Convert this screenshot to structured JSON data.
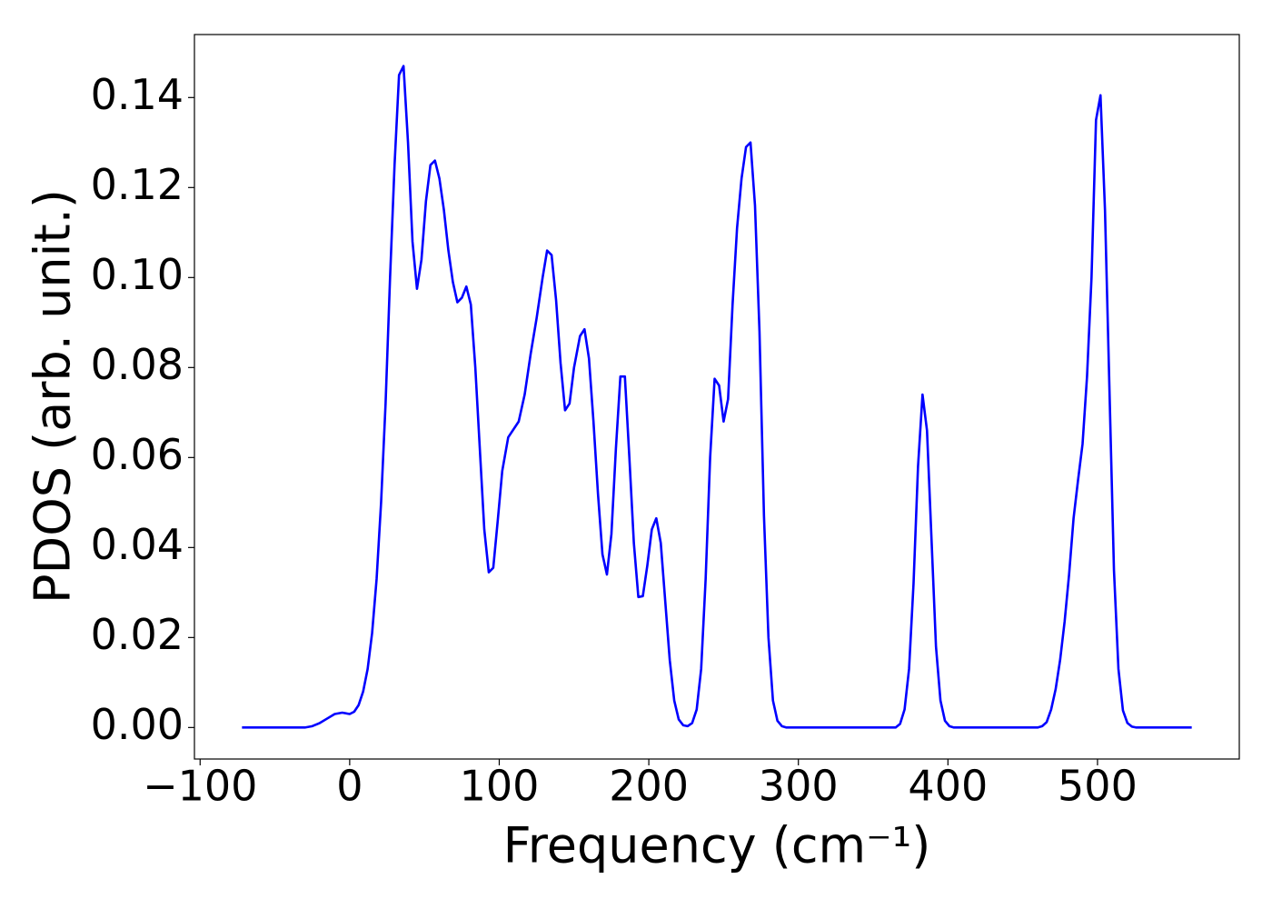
{
  "chart_data": {
    "type": "line",
    "x_label": "Frequency (cm⁻¹)",
    "y_label": "PDOS (arb. unit.)",
    "xlim": [
      -103.8,
      594.8
    ],
    "ylim": [
      -0.007,
      0.154
    ],
    "xticks": [
      {
        "value": -100,
        "label": "−100"
      },
      0,
      100,
      200,
      300,
      400,
      500
    ],
    "yticks": [
      {
        "value": 0,
        "label": "0.00"
      },
      {
        "value": 0.02,
        "label": "0.02"
      },
      {
        "value": 0.04,
        "label": "0.04"
      },
      {
        "value": 0.06,
        "label": "0.06"
      },
      {
        "value": 0.08,
        "label": "0.08"
      },
      {
        "value": 0.1,
        "label": "0.10"
      },
      {
        "value": 0.12,
        "label": "0.12"
      },
      {
        "value": 0.14,
        "label": "0.14"
      }
    ],
    "x": [
      -72,
      -30,
      -25,
      -20,
      -15,
      -10,
      -5,
      0,
      3,
      6,
      9,
      12,
      15,
      18,
      21,
      24,
      27,
      30,
      33,
      36,
      39,
      42,
      45,
      48,
      51,
      54,
      57,
      60,
      63,
      66,
      69,
      72,
      75,
      78,
      81,
      84,
      87,
      90,
      93,
      96,
      99,
      102,
      106,
      113,
      117,
      121,
      125,
      129,
      132,
      135,
      138,
      141,
      144,
      147,
      150,
      154,
      157,
      160,
      163,
      166,
      169,
      172,
      175,
      178,
      181,
      184,
      187,
      190,
      193,
      196,
      199,
      202,
      205,
      208,
      211,
      214,
      217,
      220,
      223,
      226,
      229,
      232,
      235,
      238,
      241,
      244,
      247,
      250,
      253,
      256,
      259,
      262,
      265,
      268,
      271,
      274,
      277,
      280,
      283,
      286,
      289,
      292,
      365,
      368,
      371,
      374,
      377,
      380,
      383,
      386,
      389,
      392,
      395,
      398,
      401,
      404,
      460,
      463,
      466,
      469,
      472,
      475,
      478,
      481,
      484,
      487,
      490,
      493,
      496,
      499,
      502,
      505,
      508,
      511,
      514,
      517,
      520,
      523,
      526,
      563
    ],
    "series": [
      {
        "color": "#0000ff",
        "values": [
          0,
          0,
          0.0003,
          0.001,
          0.002,
          0.003,
          0.0033,
          0.003,
          0.0035,
          0.005,
          0.008,
          0.013,
          0.021,
          0.033,
          0.05,
          0.072,
          0.1,
          0.125,
          0.145,
          0.147,
          0.13,
          0.108,
          0.0975,
          0.104,
          0.117,
          0.125,
          0.126,
          0.122,
          0.115,
          0.106,
          0.099,
          0.0945,
          0.0955,
          0.098,
          0.094,
          0.08,
          0.062,
          0.044,
          0.0345,
          0.0355,
          0.046,
          0.057,
          0.0645,
          0.068,
          0.074,
          0.083,
          0.091,
          0.1,
          0.106,
          0.105,
          0.095,
          0.081,
          0.0705,
          0.072,
          0.08,
          0.087,
          0.0885,
          0.082,
          0.068,
          0.052,
          0.0385,
          0.034,
          0.043,
          0.062,
          0.078,
          0.078,
          0.06,
          0.041,
          0.029,
          0.0292,
          0.036,
          0.044,
          0.0465,
          0.041,
          0.028,
          0.015,
          0.006,
          0.0018,
          0.0005,
          0.0003,
          0.001,
          0.004,
          0.013,
          0.033,
          0.06,
          0.0775,
          0.076,
          0.068,
          0.073,
          0.094,
          0.111,
          0.122,
          0.129,
          0.13,
          0.116,
          0.088,
          0.047,
          0.02,
          0.006,
          0.0015,
          0.0003,
          0,
          0,
          0.0008,
          0.004,
          0.013,
          0.032,
          0.058,
          0.074,
          0.066,
          0.042,
          0.018,
          0.006,
          0.0015,
          0.0003,
          0,
          0,
          0.0003,
          0.0012,
          0.004,
          0.0085,
          0.015,
          0.0235,
          0.034,
          0.0465,
          0.055,
          0.063,
          0.078,
          0.1,
          0.135,
          0.1405,
          0.115,
          0.075,
          0.035,
          0.013,
          0.0038,
          0.001,
          0.0002,
          0,
          0
        ]
      }
    ]
  }
}
